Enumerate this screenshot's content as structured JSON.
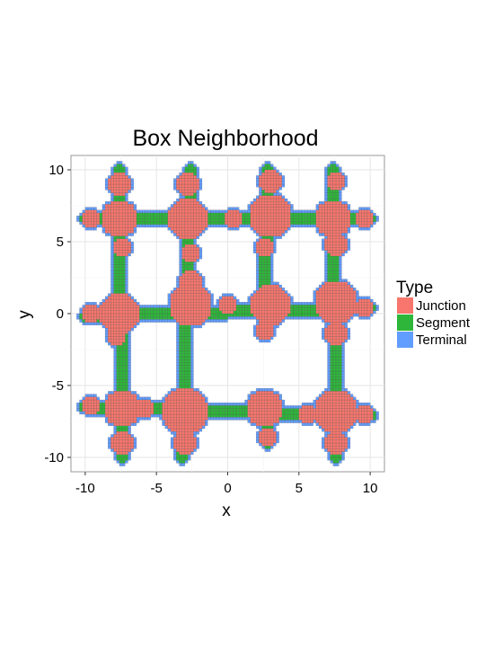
{
  "chart_data": {
    "type": "heatmap",
    "title": "Box Neighborhood",
    "xlabel": "x",
    "ylabel": "y",
    "xlim": [
      -11,
      11
    ],
    "ylim": [
      -11,
      11
    ],
    "xticks": [
      -10,
      -5,
      0,
      5,
      10
    ],
    "yticks": [
      -10,
      -5,
      0,
      5,
      10
    ],
    "xtick_labels": [
      "-10",
      "-5",
      "0",
      "5",
      "10"
    ],
    "ytick_labels": [
      "-10",
      "-5",
      "0",
      "5",
      "10"
    ],
    "grid": true,
    "cell_size": 0.2,
    "legend_position": "right",
    "legend": {
      "title": "Type",
      "entries": [
        {
          "name": "Junction",
          "color": "#F8766D"
        },
        {
          "name": "Segment",
          "color": "#2DB63A"
        },
        {
          "name": "Terminal",
          "color": "#619CFF"
        }
      ]
    },
    "colors": {
      "panel_background": "#FFFFFF",
      "panel_border": "#9A9A9A",
      "grid_major": "#E6E6E6",
      "grid_minor": "#F2F2F2",
      "cell_border": "#4A4A4A"
    },
    "segments": [
      {
        "x1": -10,
        "y1": 6.6,
        "x2": 10,
        "y2": 6.6,
        "width": 0.8
      },
      {
        "x1": -10,
        "y1": -0.2,
        "x2": 10,
        "y2": 0.4,
        "width": 0.8
      },
      {
        "x1": -10,
        "y1": -6.5,
        "x2": 10,
        "y2": -7.1,
        "width": 0.8
      },
      {
        "x1": -7.6,
        "y1": 10,
        "x2": -7.4,
        "y2": -10,
        "width": 0.8
      },
      {
        "x1": -2.6,
        "y1": 10,
        "x2": -3.2,
        "y2": -10,
        "width": 0.8
      },
      {
        "x1": 2.8,
        "y1": 10,
        "x2": 2.6,
        "y2": -1.5,
        "width": 0.8
      },
      {
        "x1": 2.6,
        "y1": -6,
        "x2": 2.8,
        "y2": -9,
        "width": 0.8
      },
      {
        "x1": 7.4,
        "y1": 10,
        "x2": 7.6,
        "y2": -10,
        "width": 0.8
      }
    ],
    "junctions": [
      {
        "x": -7.6,
        "y": 6.6,
        "r": 1.3
      },
      {
        "x": -2.8,
        "y": 6.6,
        "r": 1.4
      },
      {
        "x": 3.0,
        "y": 6.8,
        "r": 1.5
      },
      {
        "x": 7.4,
        "y": 6.6,
        "r": 1.3
      },
      {
        "x": -7.6,
        "y": 0.0,
        "r": 1.4
      },
      {
        "x": -2.6,
        "y": 0.6,
        "r": 1.5
      },
      {
        "x": 3.0,
        "y": 0.6,
        "r": 1.4
      },
      {
        "x": 7.6,
        "y": 0.8,
        "r": 1.5
      },
      {
        "x": -7.4,
        "y": -6.6,
        "r": 1.3
      },
      {
        "x": -3.0,
        "y": -6.8,
        "r": 1.6
      },
      {
        "x": 2.6,
        "y": -6.6,
        "r": 1.3
      },
      {
        "x": 7.6,
        "y": -6.8,
        "r": 1.5
      },
      {
        "x": -7.6,
        "y": 9.0,
        "r": 0.8
      },
      {
        "x": -2.8,
        "y": 9.0,
        "r": 0.8
      },
      {
        "x": 3.0,
        "y": 9.2,
        "r": 0.8
      },
      {
        "x": 7.6,
        "y": 9.2,
        "r": 0.7
      },
      {
        "x": -9.6,
        "y": 6.6,
        "r": 0.7
      },
      {
        "x": 9.6,
        "y": 6.6,
        "r": 0.6
      },
      {
        "x": 0.4,
        "y": 6.6,
        "r": 0.7
      },
      {
        "x": 7.6,
        "y": 4.8,
        "r": 0.8
      },
      {
        "x": -2.6,
        "y": 4.2,
        "r": 0.7
      },
      {
        "x": -7.4,
        "y": 4.6,
        "r": 0.7
      },
      {
        "x": 2.6,
        "y": 4.6,
        "r": 0.7
      },
      {
        "x": -9.6,
        "y": 0.0,
        "r": 0.6
      },
      {
        "x": 9.6,
        "y": 0.4,
        "r": 0.7
      },
      {
        "x": -2.6,
        "y": 2.2,
        "r": 0.8
      },
      {
        "x": 7.6,
        "y": -1.4,
        "r": 0.8
      },
      {
        "x": -7.8,
        "y": -1.6,
        "r": 0.7
      },
      {
        "x": 0.0,
        "y": 0.6,
        "r": 0.7
      },
      {
        "x": 2.6,
        "y": -1.2,
        "r": 0.6
      },
      {
        "x": -9.6,
        "y": -6.4,
        "r": 0.7
      },
      {
        "x": 9.6,
        "y": -7.0,
        "r": 0.7
      },
      {
        "x": -7.4,
        "y": -9.0,
        "r": 0.8
      },
      {
        "x": -3.0,
        "y": -9.0,
        "r": 0.8
      },
      {
        "x": 2.8,
        "y": -8.6,
        "r": 0.7
      },
      {
        "x": 7.6,
        "y": -9.0,
        "r": 0.8
      },
      {
        "x": 5.6,
        "y": -7.0,
        "r": 0.6
      },
      {
        "x": -5.8,
        "y": -6.6,
        "r": 0.6
      }
    ]
  }
}
